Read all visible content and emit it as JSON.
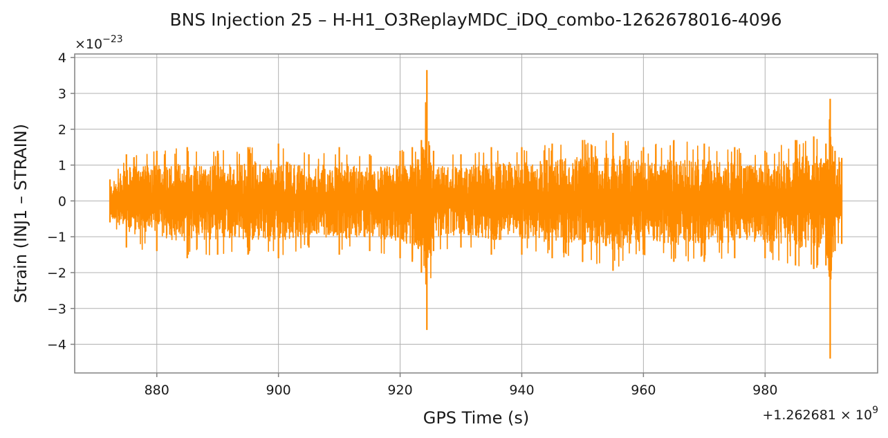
{
  "chart_data": {
    "type": "line",
    "title": "BNS Injection 25 – H-H1_O3ReplayMDC_iDQ_combo-1262678016-4096",
    "xlabel": "GPS Time (s)",
    "ylabel": "Strain (INJ1 – STRAIN)",
    "x_offset_label": "+1.262681 × 10",
    "x_offset_exponent": "9",
    "y_scale_label": "×10",
    "y_scale_exponent": "−23",
    "xlim": [
      866.5,
      998.5
    ],
    "ylim": [
      -4.8,
      4.1
    ],
    "xticks": [
      880,
      900,
      920,
      940,
      960,
      980
    ],
    "xtick_labels": [
      "880",
      "900",
      "920",
      "940",
      "960",
      "980"
    ],
    "yticks": [
      -4,
      -3,
      -2,
      -1,
      0,
      1,
      2,
      3,
      4
    ],
    "ytick_labels": [
      "−4",
      "−3",
      "−2",
      "−1",
      "0",
      "1",
      "2",
      "3",
      "4"
    ],
    "grid": true,
    "series": [
      {
        "color": "#ff8c00",
        "x_range": [
          872.3,
          992.6
        ],
        "envelope": {
          "x": [
            872.3,
            875,
            880,
            885,
            890,
            895,
            900,
            905,
            910,
            915,
            920,
            922,
            923.5,
            924.4,
            925.5,
            930,
            935,
            940,
            945,
            950,
            955,
            960,
            965,
            970,
            975,
            980,
            985,
            988,
            990,
            990.7,
            991.5,
            992.6
          ],
          "max": [
            0.6,
            1.3,
            1.4,
            1.5,
            1.4,
            1.5,
            1.6,
            1.3,
            1.5,
            1.3,
            1.4,
            1.5,
            1.7,
            3.65,
            1.4,
            1.3,
            1.5,
            1.5,
            1.6,
            1.7,
            1.9,
            1.5,
            1.7,
            1.6,
            1.5,
            1.4,
            1.7,
            1.8,
            1.6,
            2.85,
            1.4,
            1.2
          ],
          "min": [
            -0.6,
            -1.3,
            -1.4,
            -1.6,
            -1.5,
            -1.5,
            -1.6,
            -1.3,
            -1.5,
            -1.4,
            -1.6,
            -1.7,
            -2.0,
            -3.6,
            -1.4,
            -1.3,
            -1.5,
            -1.5,
            -1.6,
            -1.7,
            -1.95,
            -1.5,
            -1.7,
            -1.7,
            -1.6,
            -1.6,
            -1.8,
            -1.9,
            -1.8,
            -4.4,
            -1.4,
            -1.2
          ]
        }
      }
    ]
  }
}
